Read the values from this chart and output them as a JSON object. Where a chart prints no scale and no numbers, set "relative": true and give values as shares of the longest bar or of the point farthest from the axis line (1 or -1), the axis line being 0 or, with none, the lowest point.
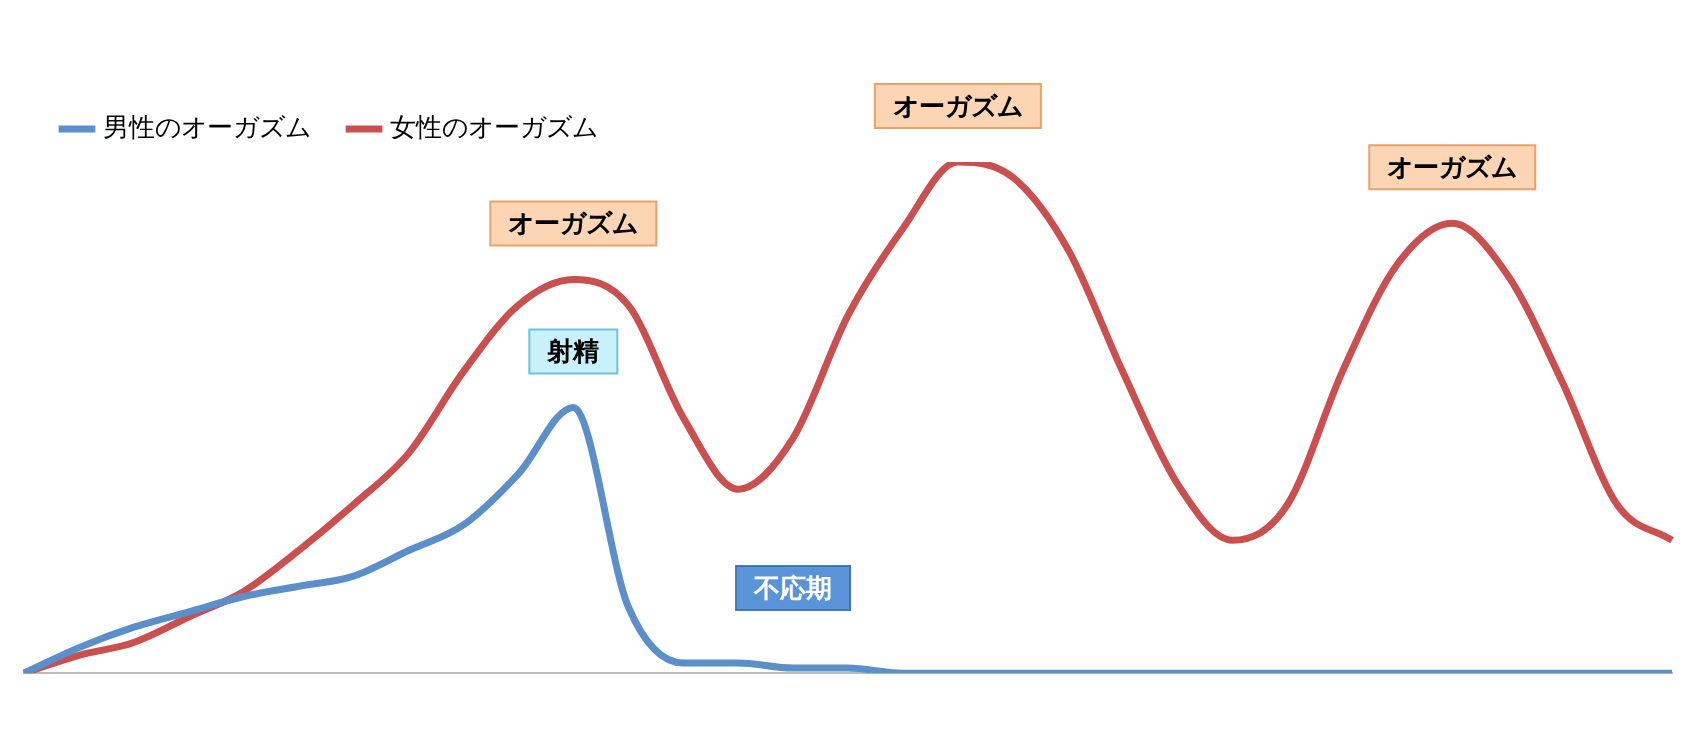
{
  "chart_data": {
    "type": "line",
    "relative": true,
    "legend": "top left",
    "marker": "none",
    "grid": false,
    "categories": [
      null,
      null,
      null,
      null,
      null,
      null,
      null,
      null,
      null,
      null,
      null,
      null,
      null,
      null,
      null,
      null,
      null,
      null,
      null,
      null,
      null,
      null,
      null,
      null,
      null,
      null,
      null,
      null,
      null,
      null,
      null
    ],
    "series": [
      {
        "name": "男性のオーガズム",
        "color": "#5b8fc9",
        "values": [
          0,
          0.05,
          0.09,
          0.12,
          0.15,
          0.17,
          0.19,
          0.24,
          0.29,
          0.39,
          0.52,
          0.13,
          0.02,
          0.02,
          0.01,
          0.01,
          0,
          0,
          0,
          0,
          0,
          0,
          0,
          0,
          0,
          0,
          0,
          0,
          0,
          0,
          0
        ]
      },
      {
        "name": "女性のオーガズム",
        "color": "#c9504f",
        "values": [
          0,
          0.035,
          0.06,
          0.11,
          0.16,
          0.24,
          0.33,
          0.43,
          0.59,
          0.72,
          0.77,
          0.72,
          0.5,
          0.36,
          0.46,
          0.7,
          0.87,
          1,
          0.97,
          0.83,
          0.59,
          0.37,
          0.26,
          0.33,
          0.59,
          0.8,
          0.88,
          0.78,
          0.57,
          0.33,
          0.26
        ]
      }
    ],
    "annotations": [
      "オーガズム",
      "オーガズム",
      "オーガズム",
      "射精",
      "不応期"
    ]
  }
}
